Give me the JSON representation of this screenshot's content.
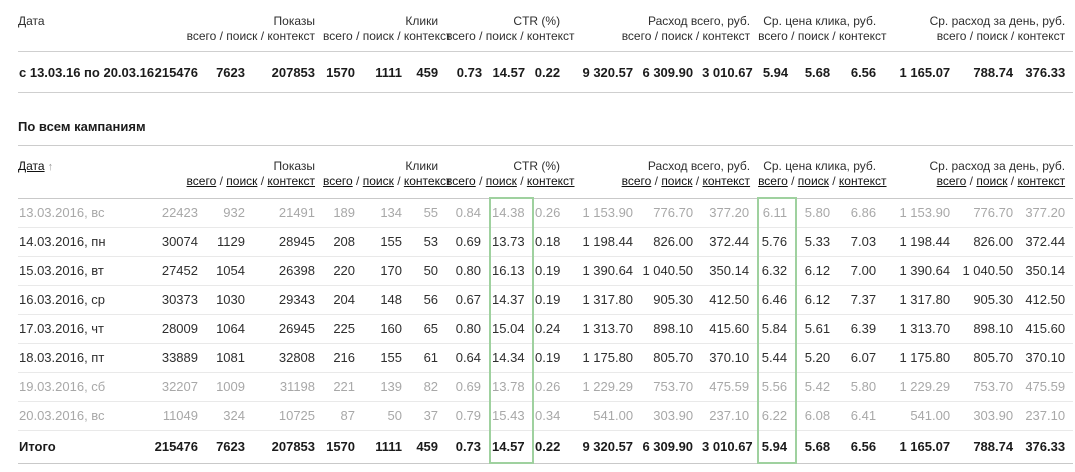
{
  "colors": {
    "highlight": "#9fd19f",
    "muted_text": "#a8a8a8"
  },
  "columns": {
    "date_label": "Дата",
    "sub": "всего / поиск / контекст",
    "sub_links": [
      "всего",
      "поиск",
      "контекст"
    ],
    "groups": [
      {
        "key": "shows",
        "label": "Показы"
      },
      {
        "key": "clicks",
        "label": "Клики"
      },
      {
        "key": "ctr",
        "label": "CTR (%)"
      },
      {
        "key": "cost",
        "label": "Расход всего, руб."
      },
      {
        "key": "cpc",
        "label": "Ср. цена клика, руб."
      },
      {
        "key": "daily",
        "label": "Ср. расход за день, руб."
      }
    ]
  },
  "summary_table": {
    "row": {
      "date_range": "с 13.03.16 по 20.03.16",
      "values": [
        "215476",
        "7623",
        "207853",
        "1570",
        "1111",
        "459",
        "0.73",
        "14.57",
        "0.22",
        "9 320.57",
        "6 309.90",
        "3 010.67",
        "5.94",
        "5.68",
        "6.56",
        "1 165.07",
        "788.74",
        "376.33"
      ]
    }
  },
  "campaigns_section": {
    "title": "По всем кампаниям",
    "sort_arrow": "↑",
    "rows": [
      {
        "date": "13.03.2016, вс",
        "muted": true,
        "values": [
          "22423",
          "932",
          "21491",
          "189",
          "134",
          "55",
          "0.84",
          "14.38",
          "0.26",
          "1 153.90",
          "776.70",
          "377.20",
          "6.11",
          "5.80",
          "6.86",
          "1 153.90",
          "776.70",
          "377.20"
        ]
      },
      {
        "date": "14.03.2016, пн",
        "muted": false,
        "values": [
          "30074",
          "1129",
          "28945",
          "208",
          "155",
          "53",
          "0.69",
          "13.73",
          "0.18",
          "1 198.44",
          "826.00",
          "372.44",
          "5.76",
          "5.33",
          "7.03",
          "1 198.44",
          "826.00",
          "372.44"
        ]
      },
      {
        "date": "15.03.2016, вт",
        "muted": false,
        "values": [
          "27452",
          "1054",
          "26398",
          "220",
          "170",
          "50",
          "0.80",
          "16.13",
          "0.19",
          "1 390.64",
          "1 040.50",
          "350.14",
          "6.32",
          "6.12",
          "7.00",
          "1 390.64",
          "1 040.50",
          "350.14"
        ]
      },
      {
        "date": "16.03.2016, ср",
        "muted": false,
        "values": [
          "30373",
          "1030",
          "29343",
          "204",
          "148",
          "56",
          "0.67",
          "14.37",
          "0.19",
          "1 317.80",
          "905.30",
          "412.50",
          "6.46",
          "6.12",
          "7.37",
          "1 317.80",
          "905.30",
          "412.50"
        ]
      },
      {
        "date": "17.03.2016, чт",
        "muted": false,
        "values": [
          "28009",
          "1064",
          "26945",
          "225",
          "160",
          "65",
          "0.80",
          "15.04",
          "0.24",
          "1 313.70",
          "898.10",
          "415.60",
          "5.84",
          "5.61",
          "6.39",
          "1 313.70",
          "898.10",
          "415.60"
        ]
      },
      {
        "date": "18.03.2016, пт",
        "muted": false,
        "values": [
          "33889",
          "1081",
          "32808",
          "216",
          "155",
          "61",
          "0.64",
          "14.34",
          "0.19",
          "1 175.80",
          "805.70",
          "370.10",
          "5.44",
          "5.20",
          "6.07",
          "1 175.80",
          "805.70",
          "370.10"
        ]
      },
      {
        "date": "19.03.2016, сб",
        "muted": true,
        "values": [
          "32207",
          "1009",
          "31198",
          "221",
          "139",
          "82",
          "0.69",
          "13.78",
          "0.26",
          "1 229.29",
          "753.70",
          "475.59",
          "5.56",
          "5.42",
          "5.80",
          "1 229.29",
          "753.70",
          "475.59"
        ]
      },
      {
        "date": "20.03.2016, вс",
        "muted": true,
        "values": [
          "11049",
          "324",
          "10725",
          "87",
          "50",
          "37",
          "0.79",
          "15.43",
          "0.34",
          "541.00",
          "303.90",
          "237.10",
          "6.22",
          "6.08",
          "6.41",
          "541.00",
          "303.90",
          "237.10"
        ]
      }
    ],
    "total": {
      "label": "Итого",
      "values": [
        "215476",
        "7623",
        "207853",
        "1570",
        "1111",
        "459",
        "0.73",
        "14.57",
        "0.22",
        "9 320.57",
        "6 309.90",
        "3 010.67",
        "5.94",
        "5.68",
        "6.56",
        "1 165.07",
        "788.74",
        "376.33"
      ]
    }
  }
}
